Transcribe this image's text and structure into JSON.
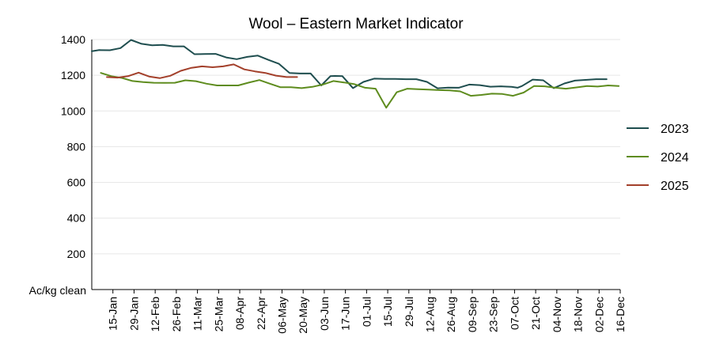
{
  "chart_data": {
    "type": "line",
    "title": "Wool – Eastern Market Indicator",
    "xlabel": "",
    "ylabel": "Ac/kg clean",
    "ylim": [
      0,
      1400
    ],
    "yticks": [
      200,
      400,
      600,
      800,
      1000,
      1200,
      1400
    ],
    "grid": true,
    "legend_position": "right",
    "x_tick_labels": [
      "15-Jan",
      "29-Jan",
      "12-Feb",
      "26-Feb",
      "11-Mar",
      "25-Mar",
      "08-Apr",
      "22-Apr",
      "06-May",
      "20-May",
      "03-Jun",
      "17-Jun",
      "01-Jul",
      "15-Jul",
      "29-Jul",
      "12-Aug",
      "26-Aug",
      "09-Sep",
      "23-Sep",
      "07-Oct",
      "21-Oct",
      "04-Nov",
      "18-Nov",
      "02-Dec",
      "16-Dec"
    ],
    "x_tick_days": [
      15,
      29,
      43,
      57,
      71,
      85,
      99,
      113,
      127,
      141,
      155,
      169,
      183,
      197,
      211,
      225,
      239,
      253,
      267,
      281,
      295,
      309,
      323,
      337,
      351
    ],
    "series": [
      {
        "name": "2023",
        "color": "#1f4e4f",
        "x": [
          1,
          6,
          13,
          20,
          27,
          34,
          41,
          48,
          55,
          62,
          69,
          76,
          83,
          90,
          97,
          104,
          111,
          118,
          125,
          132,
          139,
          146,
          153,
          159,
          162,
          167,
          174,
          181,
          188,
          195,
          202,
          209,
          216,
          223,
          230,
          237,
          244,
          251,
          258,
          265,
          272,
          279,
          283,
          286,
          293,
          300,
          307,
          314,
          321,
          328,
          335,
          342
        ],
        "y": [
          1335,
          1341,
          1340,
          1352,
          1398,
          1376,
          1368,
          1370,
          1362,
          1362,
          1318,
          1319,
          1320,
          1300,
          1290,
          1303,
          1310,
          1286,
          1264,
          1213,
          1210,
          1210,
          1143,
          1195,
          1196,
          1195,
          1128,
          1163,
          1181,
          1180,
          1180,
          1178,
          1178,
          1163,
          1127,
          1131,
          1130,
          1148,
          1145,
          1136,
          1138,
          1135,
          1130,
          1140,
          1176,
          1172,
          1128,
          1154,
          1170,
          1174,
          1178,
          1178
        ]
      },
      {
        "name": "2024",
        "color": "#5e8c1e",
        "x": [
          7,
          14,
          21,
          28,
          35,
          42,
          49,
          56,
          63,
          70,
          77,
          84,
          91,
          98,
          105,
          112,
          119,
          126,
          133,
          140,
          147,
          154,
          161,
          168,
          175,
          182,
          189,
          196,
          203,
          210,
          217,
          224,
          231,
          238,
          245,
          252,
          259,
          266,
          273,
          280,
          287,
          294,
          301,
          308,
          315,
          322,
          329,
          336,
          343,
          350
        ],
        "y": [
          1213,
          1195,
          1185,
          1168,
          1162,
          1158,
          1157,
          1158,
          1172,
          1167,
          1153,
          1143,
          1143,
          1143,
          1159,
          1173,
          1153,
          1133,
          1133,
          1128,
          1135,
          1148,
          1168,
          1160,
          1150,
          1130,
          1125,
          1018,
          1105,
          1125,
          1122,
          1120,
          1117,
          1115,
          1110,
          1085,
          1090,
          1097,
          1095,
          1085,
          1103,
          1140,
          1138,
          1130,
          1125,
          1132,
          1140,
          1137,
          1143,
          1140
        ]
      },
      {
        "name": "2025",
        "color": "#a3402b",
        "x": [
          11,
          18,
          25,
          32,
          39,
          46,
          53,
          60,
          67,
          74,
          81,
          88,
          95,
          102,
          109,
          116,
          123,
          130,
          137
        ],
        "y": [
          1190,
          1187,
          1195,
          1215,
          1193,
          1184,
          1197,
          1225,
          1242,
          1250,
          1245,
          1250,
          1261,
          1233,
          1222,
          1213,
          1198,
          1190,
          1190
        ]
      }
    ]
  }
}
